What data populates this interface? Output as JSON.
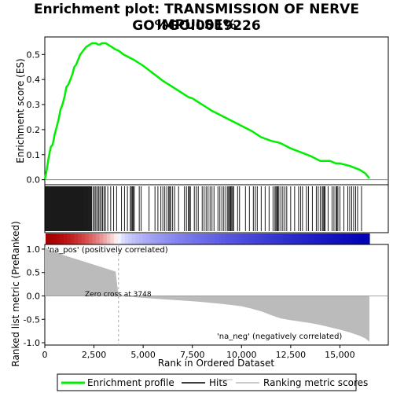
{
  "title_line1": "Enrichment plot: TRANSMISSION OF NERVE IMPULSE%",
  "title_line2": "GO%GO:0019226",
  "chart_data": {
    "type": "line",
    "top_panel": {
      "ylabel": "Enrichment score (ES)",
      "ylim": [
        -0.02,
        0.57
      ],
      "yticks": [
        0.0,
        0.1,
        0.2,
        0.3,
        0.4,
        0.5
      ],
      "series": [
        {
          "name": "Enrichment profile",
          "color": "#00ee00",
          "x": [
            0,
            100,
            200,
            300,
            400,
            500,
            600,
            700,
            800,
            900,
            1000,
            1100,
            1200,
            1300,
            1400,
            1500,
            1600,
            1700,
            1800,
            1900,
            2000,
            2100,
            2200,
            2300,
            2400,
            2500,
            2600,
            2700,
            2800,
            2900,
            3000,
            3100,
            3200,
            3300,
            3400,
            3500,
            3600,
            3748,
            4000,
            4500,
            5000,
            5500,
            6000,
            6500,
            7000,
            7300,
            7500,
            8000,
            8500,
            9000,
            9500,
            10000,
            10500,
            11000,
            11500,
            11800,
            12000,
            12500,
            13000,
            13500,
            14000,
            14500,
            14800,
            15000,
            15500,
            16000,
            16300,
            16500
          ],
          "values": [
            0.0,
            0.04,
            0.09,
            0.13,
            0.14,
            0.18,
            0.21,
            0.24,
            0.28,
            0.3,
            0.33,
            0.37,
            0.38,
            0.4,
            0.42,
            0.45,
            0.46,
            0.48,
            0.5,
            0.51,
            0.52,
            0.53,
            0.535,
            0.54,
            0.545,
            0.545,
            0.545,
            0.54,
            0.54,
            0.545,
            0.545,
            0.545,
            0.54,
            0.535,
            0.53,
            0.525,
            0.52,
            0.515,
            0.5,
            0.48,
            0.455,
            0.425,
            0.395,
            0.37,
            0.345,
            0.33,
            0.325,
            0.3,
            0.275,
            0.255,
            0.235,
            0.215,
            0.195,
            0.17,
            0.155,
            0.15,
            0.145,
            0.125,
            0.11,
            0.095,
            0.075,
            0.075,
            0.065,
            0.065,
            0.055,
            0.04,
            0.025,
            0.005
          ]
        }
      ]
    },
    "hits_panel": {
      "hit_positions": [
        20,
        60,
        100,
        140,
        180,
        220,
        260,
        300,
        340,
        380,
        420,
        460,
        500,
        540,
        580,
        620,
        660,
        700,
        740,
        780,
        820,
        860,
        900,
        940,
        980,
        1020,
        1060,
        1100,
        1140,
        1180,
        1220,
        1260,
        1300,
        1340,
        1380,
        1420,
        1460,
        1500,
        1540,
        1580,
        1620,
        1660,
        1700,
        1740,
        1780,
        1820,
        1860,
        1900,
        1940,
        1980,
        2020,
        2060,
        2100,
        2140,
        2180,
        2220,
        2260,
        2300,
        2340,
        2380,
        2450,
        2520,
        2590,
        2660,
        2730,
        2800,
        2870,
        2940,
        3010,
        3080,
        3200,
        3350,
        3500,
        3650,
        3900,
        4050,
        4200,
        4350,
        4400,
        4450,
        4500,
        4550,
        4800,
        4900,
        5300,
        5600,
        5750,
        5900,
        6000,
        6100,
        6200,
        6300,
        6350,
        6400,
        6500,
        6600,
        6800,
        7100,
        7200,
        7300,
        7350,
        7400,
        7600,
        7700,
        7800,
        8000,
        8100,
        8200,
        8300,
        8400,
        8500,
        8600,
        8800,
        8900,
        9000,
        9100,
        9200,
        9300,
        9350,
        9400,
        9450,
        9500,
        9550,
        9600,
        9800,
        9900,
        10200,
        10400,
        10600,
        10700,
        10800,
        11000,
        11200,
        11400,
        11600,
        11700,
        11750,
        11800,
        11850,
        11900,
        12000,
        12100,
        12200,
        12300,
        12500,
        12700,
        12900,
        13000,
        13100,
        13300,
        13400,
        13600,
        13800,
        13900,
        14000,
        14100,
        14150,
        14200,
        14250,
        14400,
        14600,
        14700,
        14800,
        14850,
        14900,
        15000,
        15200,
        15400,
        15500,
        15600,
        15700,
        15800,
        15900,
        16100
      ]
    },
    "bottom_panel": {
      "type": "area",
      "ylabel": "Ranked list metric (PreRanked)",
      "xlabel": "Rank in Ordered Dataset",
      "ylim": [
        -1.05,
        1.1
      ],
      "yticks": [
        -1.0,
        -0.5,
        0.0,
        0.5,
        1.0
      ],
      "x": [
        0,
        150,
        300,
        600,
        900,
        1200,
        1500,
        1800,
        2100,
        2400,
        2700,
        3000,
        3300,
        3600,
        3748,
        4000,
        5000,
        6000,
        7000,
        8000,
        9000,
        10000,
        10500,
        11000,
        11500,
        12000,
        12500,
        13000,
        13500,
        14000,
        14500,
        15000,
        15500,
        16000,
        16300,
        16500
      ],
      "values": [
        1.05,
        1.0,
        0.97,
        0.93,
        0.88,
        0.84,
        0.8,
        0.76,
        0.72,
        0.68,
        0.64,
        0.6,
        0.56,
        0.52,
        0.0,
        -0.01,
        -0.04,
        -0.07,
        -0.1,
        -0.13,
        -0.17,
        -0.22,
        -0.27,
        -0.33,
        -0.41,
        -0.48,
        -0.52,
        -0.55,
        -0.58,
        -0.62,
        -0.67,
        -0.72,
        -0.78,
        -0.85,
        -0.91,
        -0.98
      ],
      "zero_cross_label": "Zero cross at 3748",
      "zero_cross": 3748,
      "pos_label": "'na_pos' (positively correlated)",
      "neg_label": "'na_neg' (negatively correlated)",
      "pos_label_color": "#cc0000",
      "neg_label_color": "#0000cc"
    },
    "x_range": [
      0,
      16500
    ],
    "xticks": [
      0,
      2500,
      5000,
      7500,
      10000,
      12500,
      15000
    ],
    "xtick_labels": [
      "0",
      "2,500",
      "5,000",
      "7,500",
      "10,000",
      "12,500",
      "15,000"
    ],
    "legend": [
      {
        "label": "Enrichment profile",
        "color": "#00ee00"
      },
      {
        "label": "Hits",
        "color": "#000000"
      },
      {
        "label": "Ranking metric scores",
        "color": "#bbbbbb"
      }
    ]
  }
}
